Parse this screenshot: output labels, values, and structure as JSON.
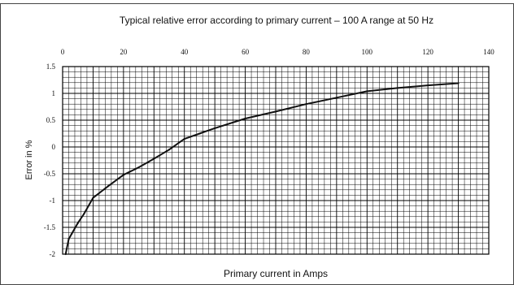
{
  "chart_data": {
    "type": "line",
    "title": "Typical relative error according to primary current – 100 A range at 50 Hz",
    "xlabel": "Primary current in Amps",
    "ylabel": "Error in %",
    "xlim": [
      0,
      140
    ],
    "ylim": [
      -2,
      1.5
    ],
    "xticks": [
      "0",
      "20",
      "40",
      "60",
      "80",
      "100",
      "120",
      "140"
    ],
    "yticks": [
      "-2",
      "-1.5",
      "-1",
      "-0.5",
      "0",
      "0.5",
      "1",
      "1.5"
    ],
    "x_axis_position": "top",
    "grid": true,
    "series": [
      {
        "color": "#111111",
        "x": [
          1,
          2,
          3,
          5,
          7,
          10,
          15,
          20,
          25,
          30,
          35,
          40,
          45,
          50,
          60,
          70,
          80,
          90,
          100,
          110,
          120,
          130
        ],
        "y": [
          -2.0,
          -1.72,
          -1.62,
          -1.42,
          -1.25,
          -0.95,
          -0.73,
          -0.52,
          -0.38,
          -0.22,
          -0.05,
          0.15,
          0.25,
          0.35,
          0.53,
          0.66,
          0.8,
          0.92,
          1.04,
          1.1,
          1.15,
          1.19
        ]
      }
    ]
  }
}
